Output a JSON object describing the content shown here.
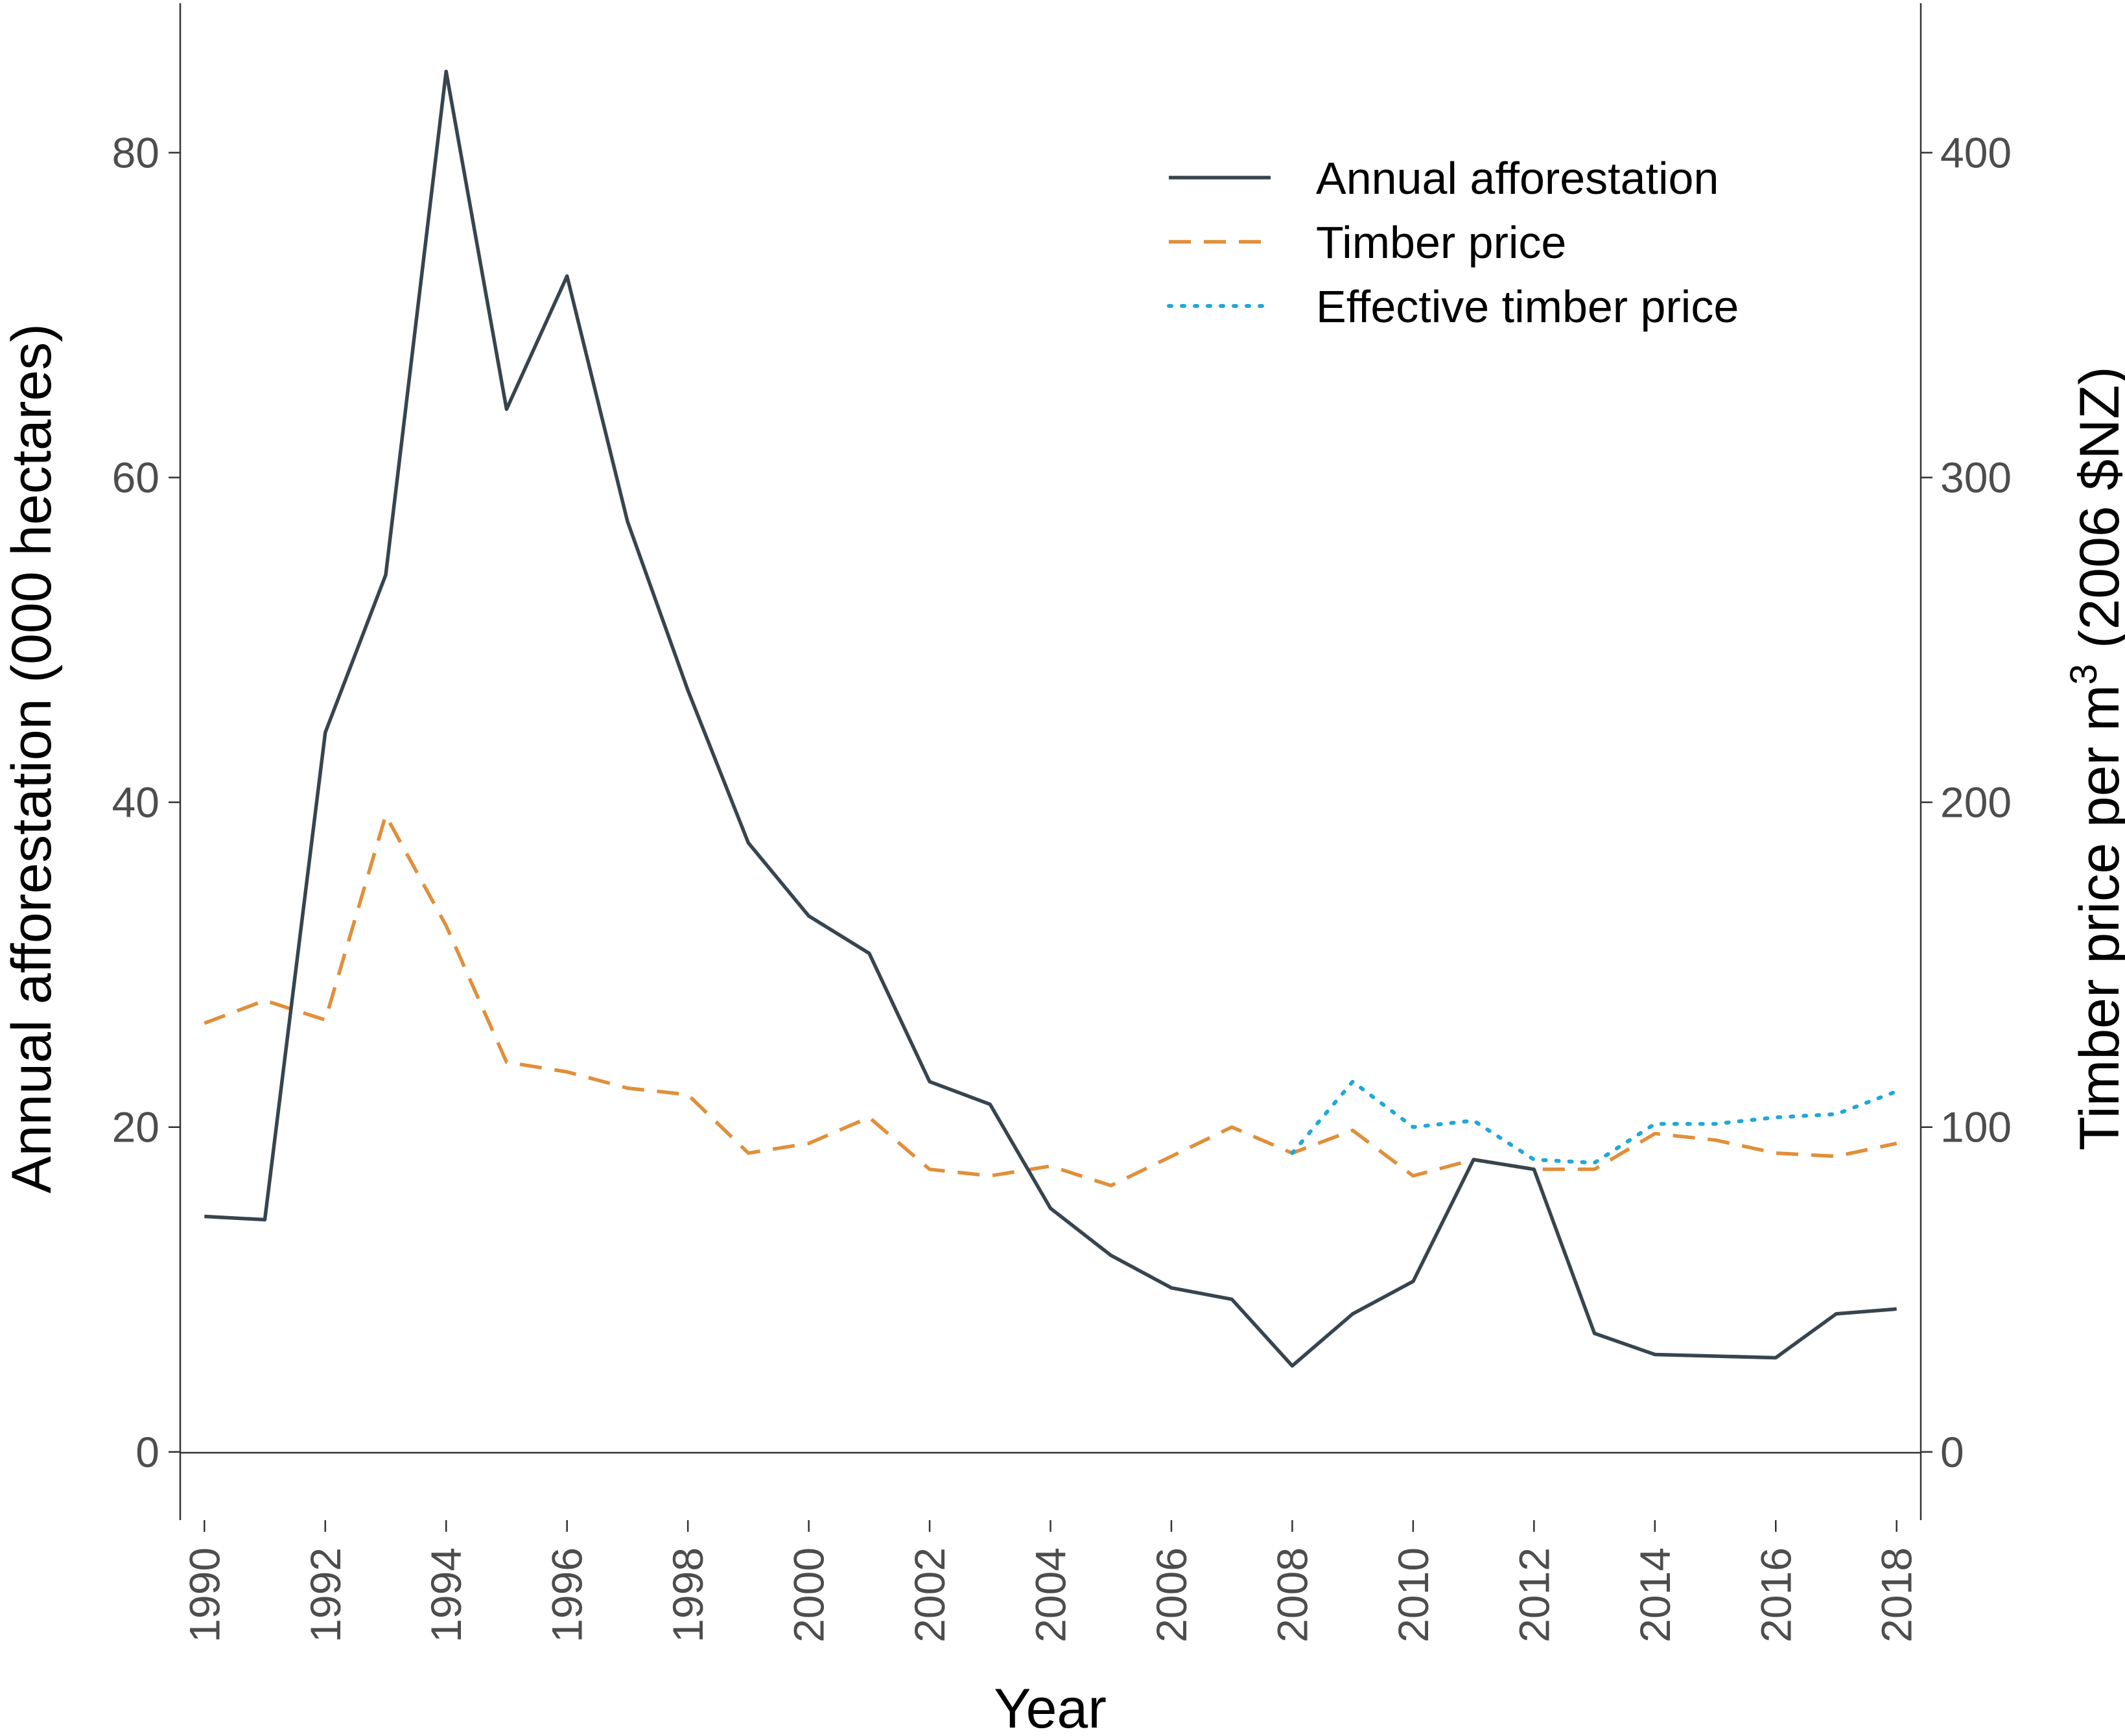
{
  "chart_data": {
    "type": "line",
    "title": "",
    "xlabel": "Year",
    "ylabel_left": "Annual afforestation (000 hectares)",
    "ylabel_right_prefix": "Timber price per m",
    "ylabel_right_sup": "3",
    "ylabel_right_suffix": " (2006 $NZ)",
    "x": [
      1990,
      1991,
      1992,
      1993,
      1994,
      1995,
      1996,
      1997,
      1998,
      1999,
      2000,
      2001,
      2002,
      2003,
      2004,
      2005,
      2006,
      2007,
      2008,
      2009,
      2010,
      2011,
      2012,
      2013,
      2014,
      2015,
      2016,
      2017,
      2018
    ],
    "xlim": [
      1989.6,
      2018.4
    ],
    "x_ticks": [
      1990,
      1992,
      1994,
      1996,
      1998,
      2000,
      2002,
      2004,
      2006,
      2008,
      2010,
      2012,
      2014,
      2016,
      2018
    ],
    "x_tick_labels": [
      "1990",
      "1992",
      "1994",
      "1996",
      "1998",
      "2000",
      "2002",
      "2004",
      "2006",
      "2008",
      "2010",
      "2012",
      "2014",
      "2016",
      "2018"
    ],
    "ylim_left": [
      -4.2,
      89.2
    ],
    "y_ticks_left": [
      0,
      20,
      40,
      60,
      80
    ],
    "y_tick_labels_left": [
      "0",
      "20",
      "40",
      "60",
      "80"
    ],
    "ylim_right": [
      -21,
      446
    ],
    "y_ticks_right": [
      0,
      100,
      200,
      300,
      400
    ],
    "y_tick_labels_right": [
      "0",
      "100",
      "200",
      "300",
      "400"
    ],
    "series": [
      {
        "name": "Annual afforestation",
        "axis": "left",
        "color": "#36454f",
        "style": "solid",
        "x": [
          1990,
          1991,
          1992,
          1993,
          1994,
          1995,
          1996,
          1997,
          1998,
          1999,
          2000,
          2001,
          2002,
          2003,
          2004,
          2005,
          2006,
          2007,
          2008,
          2009,
          2010,
          2011,
          2012,
          2013,
          2014,
          2015,
          2016,
          2017,
          2018
        ],
        "values": [
          14.5,
          14.3,
          44.3,
          54,
          85,
          64.2,
          72.4,
          57.3,
          46.9,
          37.5,
          33,
          30.7,
          22.8,
          21.4,
          15,
          12.1,
          10.1,
          9.4,
          5.3,
          8.5,
          10.5,
          18,
          17.4,
          7.3,
          6,
          5.9,
          5.8,
          8.5,
          8.8
        ]
      },
      {
        "name": "Timber price",
        "axis": "right",
        "color": "#e08f3a",
        "style": "dashed",
        "x": [
          1990,
          1991,
          1992,
          1993,
          1994,
          1995,
          1996,
          1997,
          1998,
          1999,
          2000,
          2001,
          2002,
          2003,
          2004,
          2005,
          2006,
          2007,
          2008,
          2009,
          2010,
          2011,
          2012,
          2013,
          2014,
          2015,
          2016,
          2017,
          2018
        ],
        "values": [
          132,
          139,
          133,
          196,
          162,
          120,
          117,
          112,
          110,
          92,
          95,
          103,
          87,
          85,
          88,
          82,
          91,
          100,
          92,
          99,
          85,
          90,
          87,
          87,
          98,
          96,
          92,
          91,
          95
        ]
      },
      {
        "name": "Effective timber price",
        "axis": "right",
        "color": "#1fa8d8",
        "style": "dotted",
        "x": [
          2008,
          2009,
          2010,
          2011,
          2012,
          2013,
          2014,
          2015,
          2016,
          2017,
          2018
        ],
        "values": [
          92,
          114,
          100,
          102,
          90,
          89,
          101,
          101,
          103,
          104,
          111
        ]
      }
    ],
    "legend": {
      "position": "top-right",
      "entries": [
        "Annual afforestation",
        "Timber price",
        "Effective timber price"
      ]
    },
    "grid": false
  }
}
